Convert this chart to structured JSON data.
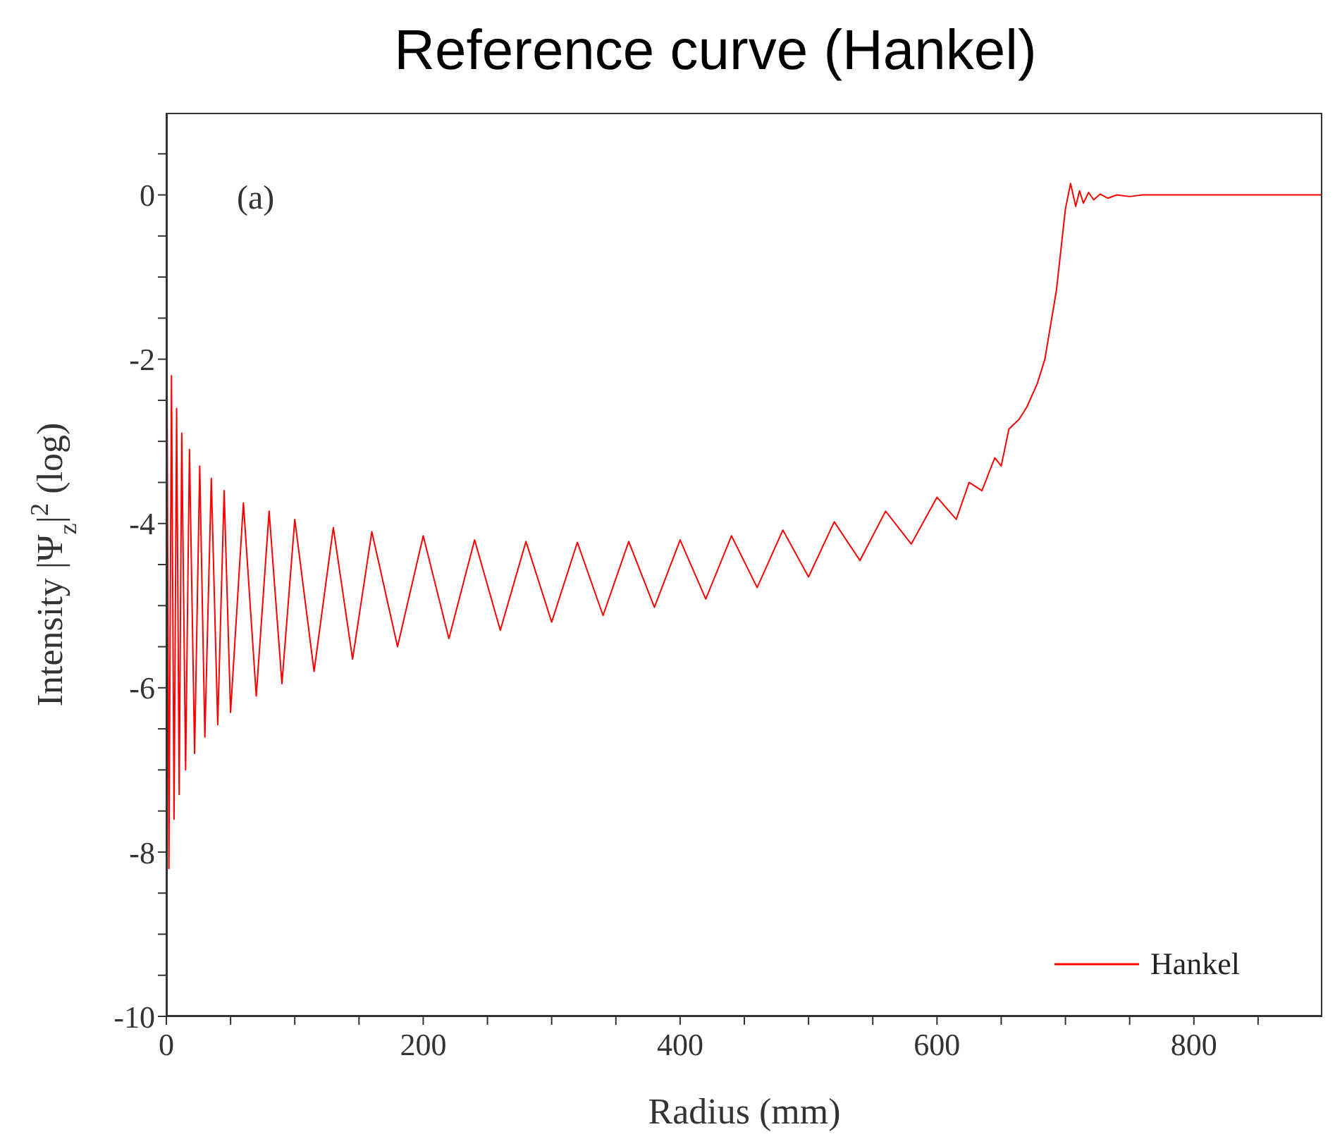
{
  "chart_data": {
    "type": "line",
    "title": "Reference curve (Hankel)",
    "xlabel": "Radius (mm)",
    "ylabel": "Intensity |Ψ$_{z}$|$^{2}$ (log)",
    "annotations": [
      "(a)"
    ],
    "xlim": [
      0,
      900
    ],
    "xticks": [
      0,
      {
        "value": 50,
        "label": null
      },
      {
        "value": 100,
        "label": null
      },
      {
        "value": 150,
        "label": null
      },
      200,
      {
        "value": 250,
        "label": null
      },
      {
        "value": 300,
        "label": null
      },
      {
        "value": 350,
        "label": null
      },
      400,
      {
        "value": 450,
        "label": null
      },
      {
        "value": 500,
        "label": null
      },
      {
        "value": 550,
        "label": null
      },
      600,
      {
        "value": 650,
        "label": null
      },
      {
        "value": 700,
        "label": null
      },
      {
        "value": 750,
        "label": null
      },
      800,
      {
        "value": 850,
        "label": null
      }
    ],
    "ylim": [
      -10,
      1
    ],
    "yticks": [
      -10,
      {
        "value": -9.5,
        "label": null
      },
      {
        "value": -9,
        "label": null
      },
      {
        "value": -8.5,
        "label": null
      },
      -8,
      {
        "value": -7.5,
        "label": null
      },
      {
        "value": -7,
        "label": null
      },
      {
        "value": -6.5,
        "label": null
      },
      -6,
      {
        "value": -5.5,
        "label": null
      },
      {
        "value": -5,
        "label": null
      },
      {
        "value": -4.5,
        "label": null
      },
      -4,
      {
        "value": -3.5,
        "label": null
      },
      {
        "value": -3,
        "label": null
      },
      {
        "value": -2.5,
        "label": null
      },
      -2,
      {
        "value": -1.5,
        "label": null
      },
      {
        "value": -1,
        "label": null
      },
      {
        "value": -0.5,
        "label": null
      },
      0,
      {
        "value": 0.5,
        "label": null
      }
    ],
    "grid": false,
    "legend": "bottom right",
    "marker": "none",
    "line_style": "solid",
    "series": [
      {
        "name": "Hankel",
        "color": "#ff0000",
        "x": [
          0,
          2,
          4,
          6,
          8,
          10,
          12,
          15,
          18,
          22,
          26,
          30,
          35,
          40,
          45,
          50,
          60,
          70,
          80,
          90,
          100,
          115,
          130,
          145,
          160,
          180,
          200,
          220,
          240,
          260,
          280,
          300,
          320,
          340,
          360,
          380,
          400,
          420,
          440,
          460,
          480,
          500,
          520,
          540,
          560,
          580,
          600,
          615,
          625,
          635,
          645,
          650,
          656,
          664,
          670,
          678,
          684,
          693,
          700,
          704,
          708,
          711,
          714,
          718,
          722,
          727,
          733,
          740,
          750,
          760,
          900
        ],
        "values": [
          0,
          -8.2,
          -2.2,
          -7.6,
          -2.6,
          -7.3,
          -2.9,
          -7.0,
          -3.1,
          -6.8,
          -3.3,
          -6.6,
          -3.45,
          -6.45,
          -3.6,
          -6.3,
          -3.75,
          -6.1,
          -3.85,
          -5.95,
          -3.95,
          -5.8,
          -4.05,
          -5.65,
          -4.1,
          -5.5,
          -4.15,
          -5.4,
          -4.2,
          -5.3,
          -4.22,
          -5.2,
          -4.23,
          -5.12,
          -4.22,
          -5.02,
          -4.2,
          -4.92,
          -4.15,
          -4.78,
          -4.08,
          -4.65,
          -3.98,
          -4.45,
          -3.85,
          -4.25,
          -3.68,
          -3.95,
          -3.5,
          -3.6,
          -3.2,
          -3.3,
          -2.85,
          -2.73,
          -2.58,
          -2.3,
          -2.0,
          -1.16,
          -0.17,
          0.14,
          -0.14,
          0.05,
          -0.1,
          0.03,
          -0.06,
          0.01,
          -0.04,
          0,
          -0.02,
          0,
          0
        ]
      }
    ]
  }
}
